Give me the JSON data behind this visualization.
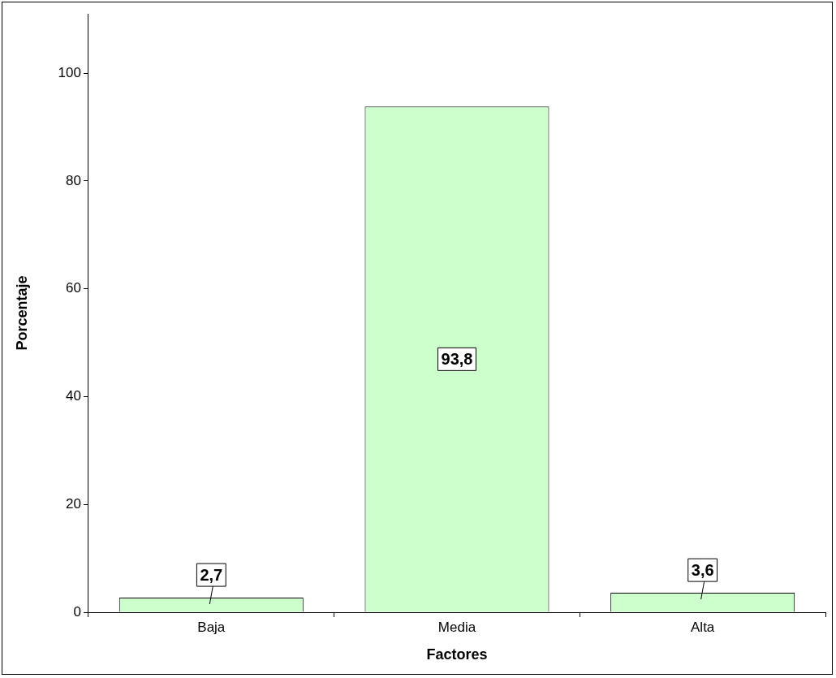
{
  "chart_data": {
    "type": "bar",
    "xlabel": "Factores",
    "ylabel": "Porcentaje",
    "categories": [
      "Baja",
      "Media",
      "Alta"
    ],
    "values": [
      2.7,
      93.8,
      3.6
    ],
    "color": "#ccffcc",
    "ylim": [
      0,
      111
    ],
    "yticks": [
      0,
      20,
      40,
      60,
      80,
      100
    ],
    "value_labels": [
      "2,7",
      "93,8",
      "3,6"
    ],
    "grid": false,
    "legend": false
  }
}
